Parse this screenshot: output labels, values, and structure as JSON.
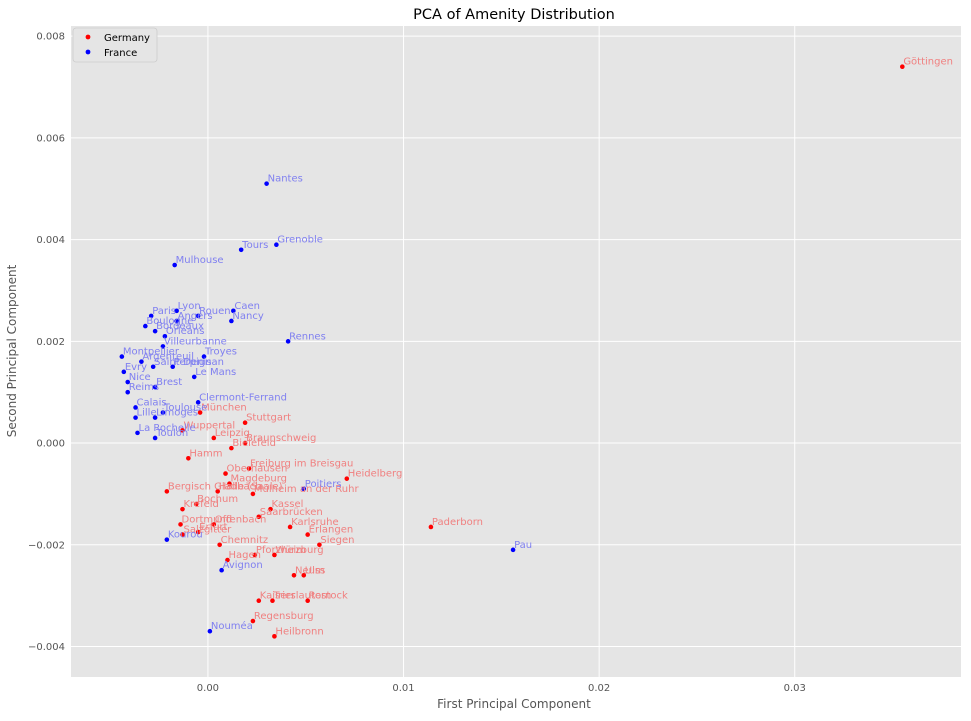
{
  "chart_data": {
    "type": "scatter",
    "title": "PCA of Amenity Distribution",
    "xlabel": "First Principal Component",
    "ylabel": "Second Principal Component",
    "xlim": [
      -0.007,
      0.0385
    ],
    "ylim": [
      -0.0046,
      0.0082
    ],
    "xticks": [
      0.0,
      0.01,
      0.02,
      0.03
    ],
    "yticks": [
      -0.004,
      -0.002,
      0.0,
      0.002,
      0.004,
      0.006,
      0.008
    ],
    "xtick_labels": [
      "0.00",
      "0.01",
      "0.02",
      "0.03"
    ],
    "ytick_labels": [
      "−0.004",
      "−0.002",
      "0.000",
      "0.002",
      "0.004",
      "0.006",
      "0.008"
    ],
    "grid": true,
    "legend_position": "top-left",
    "colors": {
      "plot_background": "#e5e5e5",
      "grid": "#ffffff",
      "germany_point": "#ff0000",
      "germany_label": "#f08080",
      "france_point": "#0000ff",
      "france_label": "#8080f0",
      "axis_text": "#555555",
      "title_text": "#000000"
    },
    "series": [
      {
        "name": "Germany",
        "points": [
          {
            "label": "Göttingen",
            "x": 0.0355,
            "y": 0.0074
          },
          {
            "label": "Heidelberg",
            "x": 0.0071,
            "y": -0.0007
          },
          {
            "label": "Paderborn",
            "x": 0.0114,
            "y": -0.00165
          },
          {
            "label": "Stuttgart",
            "x": 0.0019,
            "y": 0.0004
          },
          {
            "label": "München",
            "x": -0.0004,
            "y": 0.0006
          },
          {
            "label": "Wuppertal",
            "x": -0.0013,
            "y": 0.00025
          },
          {
            "label": "Leipzig",
            "x": 0.0003,
            "y": 0.0001
          },
          {
            "label": "Braunschweig",
            "x": 0.0019,
            "y": 0.0
          },
          {
            "label": "Bielefeld",
            "x": 0.0012,
            "y": -0.0001
          },
          {
            "label": "Hamm",
            "x": -0.001,
            "y": -0.0003
          },
          {
            "label": "Freiburg im Breisgau",
            "x": 0.0021,
            "y": -0.0005
          },
          {
            "label": "Oberhausen",
            "x": 0.0009,
            "y": -0.0006
          },
          {
            "label": "Magdeburg",
            "x": 0.0011,
            "y": -0.0008
          },
          {
            "label": "Halle (Saale)",
            "x": 0.0005,
            "y": -0.00095
          },
          {
            "label": "Bergisch Gladbach",
            "x": -0.0021,
            "y": -0.00095
          },
          {
            "label": "Mülheim an der Ruhr",
            "x": 0.0023,
            "y": -0.001
          },
          {
            "label": "Bochum",
            "x": -0.0006,
            "y": -0.0012
          },
          {
            "label": "Kassel",
            "x": 0.0032,
            "y": -0.0013
          },
          {
            "label": "Saarbrücken",
            "x": 0.0026,
            "y": -0.00145
          },
          {
            "label": "Krefeld",
            "x": -0.0013,
            "y": -0.0013
          },
          {
            "label": "Karlsruhe",
            "x": 0.0042,
            "y": -0.00165
          },
          {
            "label": "Erlangen",
            "x": 0.0051,
            "y": -0.0018
          },
          {
            "label": "Siegen",
            "x": 0.0057,
            "y": -0.002
          },
          {
            "label": "Offenbach",
            "x": 0.0003,
            "y": -0.0016
          },
          {
            "label": "Dortmund",
            "x": -0.0014,
            "y": -0.0016
          },
          {
            "label": "Erfurt",
            "x": -0.0005,
            "y": -0.00175
          },
          {
            "label": "Salzgitter",
            "x": -0.0013,
            "y": -0.0018
          },
          {
            "label": "Chemnitz",
            "x": 0.0006,
            "y": -0.002
          },
          {
            "label": "Pforzheim",
            "x": 0.0024,
            "y": -0.0022
          },
          {
            "label": "Würzburg",
            "x": 0.0034,
            "y": -0.0022
          },
          {
            "label": "Hagen",
            "x": 0.001,
            "y": -0.0023
          },
          {
            "label": "Ulm",
            "x": 0.0049,
            "y": -0.0026
          },
          {
            "label": "Neuss",
            "x": 0.0044,
            "y": -0.0026
          },
          {
            "label": "Kaiserslautern",
            "x": 0.0026,
            "y": -0.0031
          },
          {
            "label": "Trier",
            "x": 0.0033,
            "y": -0.0031
          },
          {
            "label": "Rostock",
            "x": 0.0051,
            "y": -0.0031
          },
          {
            "label": "Regensburg",
            "x": 0.0023,
            "y": -0.0035
          },
          {
            "label": "Heilbronn",
            "x": 0.0034,
            "y": -0.0038
          }
        ]
      },
      {
        "name": "France",
        "points": [
          {
            "label": "Nantes",
            "x": 0.003,
            "y": 0.0051
          },
          {
            "label": "Tours",
            "x": 0.0017,
            "y": 0.0038
          },
          {
            "label": "Grenoble",
            "x": 0.0035,
            "y": 0.0039
          },
          {
            "label": "Mulhouse",
            "x": -0.0017,
            "y": 0.0035
          },
          {
            "label": "Lyon",
            "x": -0.0016,
            "y": 0.0026
          },
          {
            "label": "Caen",
            "x": 0.0013,
            "y": 0.0026
          },
          {
            "label": "Rouen",
            "x": -0.0005,
            "y": 0.0025
          },
          {
            "label": "Paris",
            "x": -0.0029,
            "y": 0.0025
          },
          {
            "label": "Angers",
            "x": -0.0016,
            "y": 0.0024
          },
          {
            "label": "Nancy",
            "x": 0.0012,
            "y": 0.0024
          },
          {
            "label": "Boulogne",
            "x": -0.0032,
            "y": 0.0023
          },
          {
            "label": "Bordeaux",
            "x": -0.0027,
            "y": 0.0022
          },
          {
            "label": "Orléans",
            "x": -0.0022,
            "y": 0.0021
          },
          {
            "label": "Rennes",
            "x": 0.0041,
            "y": 0.002
          },
          {
            "label": "Villeurbanne",
            "x": -0.0023,
            "y": 0.0019
          },
          {
            "label": "Troyes",
            "x": -0.0002,
            "y": 0.0017
          },
          {
            "label": "Montpellier",
            "x": -0.0044,
            "y": 0.0017
          },
          {
            "label": "Argenteuil",
            "x": -0.0034,
            "y": 0.0016
          },
          {
            "label": "Saint-Denis",
            "x": -0.0028,
            "y": 0.0015
          },
          {
            "label": "Perpignan",
            "x": -0.0018,
            "y": 0.0015
          },
          {
            "label": "Evry",
            "x": -0.0043,
            "y": 0.0014
          },
          {
            "label": "Le Mans",
            "x": -0.0007,
            "y": 0.0013
          },
          {
            "label": "Nice",
            "x": -0.0041,
            "y": 0.0012
          },
          {
            "label": "Brest",
            "x": -0.0027,
            "y": 0.0011
          },
          {
            "label": "Reims",
            "x": -0.0041,
            "y": 0.001
          },
          {
            "label": "Clermont-Ferrand",
            "x": -0.0005,
            "y": 0.0008
          },
          {
            "label": "Calais",
            "x": -0.0037,
            "y": 0.0007
          },
          {
            "label": "Toulouse",
            "x": -0.0023,
            "y": 0.0006
          },
          {
            "label": "Limoges",
            "x": -0.0027,
            "y": 0.0005
          },
          {
            "label": "Lille",
            "x": -0.0037,
            "y": 0.0005
          },
          {
            "label": "La Rochelle",
            "x": -0.0036,
            "y": 0.0002
          },
          {
            "label": "Toulon",
            "x": -0.0027,
            "y": 0.0001
          },
          {
            "label": "Poitiers",
            "x": 0.0049,
            "y": -0.0009
          },
          {
            "label": "Pau",
            "x": 0.0156,
            "y": -0.0021
          },
          {
            "label": "Kourou",
            "x": -0.0021,
            "y": -0.0019
          },
          {
            "label": "Avignon",
            "x": 0.0007,
            "y": -0.0025
          },
          {
            "label": "Nouméa",
            "x": 0.0001,
            "y": -0.0037
          }
        ]
      }
    ]
  }
}
